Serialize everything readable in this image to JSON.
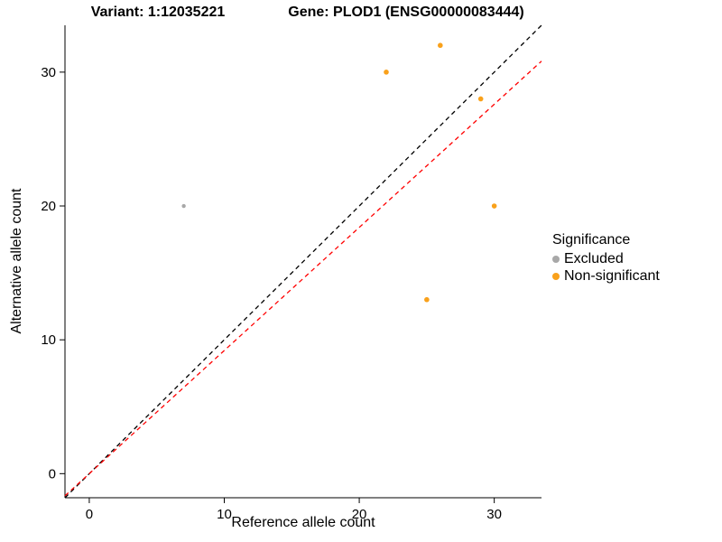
{
  "titles": {
    "variant": "Variant: 1:12035221",
    "gene": "Gene: PLOD1 (ENSG00000083444)"
  },
  "chart_data": {
    "type": "scatter",
    "xlabel": "Reference allele count",
    "ylabel": "Alternative allele count",
    "xlim": [
      -1.8,
      33.5
    ],
    "ylim": [
      -1.8,
      33.5
    ],
    "xticks": [
      0,
      10,
      20,
      30
    ],
    "yticks": [
      0,
      10,
      20,
      30
    ],
    "grid": false,
    "series": [
      {
        "name": "Excluded",
        "color": "#A8A8A8",
        "size": 2.2,
        "points": [
          {
            "x": 7,
            "y": 20
          }
        ]
      },
      {
        "name": "Non-significant",
        "color": "#F9A11B",
        "size": 2.8,
        "points": [
          {
            "x": 22,
            "y": 30
          },
          {
            "x": 26,
            "y": 32
          },
          {
            "x": 29,
            "y": 28
          },
          {
            "x": 30,
            "y": 20
          },
          {
            "x": 25,
            "y": 13
          }
        ]
      }
    ],
    "lines": [
      {
        "name": "identity",
        "color": "#000000",
        "dashed": true,
        "slope": 1.0,
        "intercept": 0
      },
      {
        "name": "fit",
        "color": "#FF0000",
        "dashed": true,
        "slope": 0.92,
        "intercept": 0
      }
    ],
    "legend": {
      "title": "Significance",
      "position": "right",
      "items": [
        {
          "label": "Excluded",
          "color": "#A8A8A8"
        },
        {
          "label": "Non-significant",
          "color": "#F9A11B"
        }
      ]
    }
  }
}
